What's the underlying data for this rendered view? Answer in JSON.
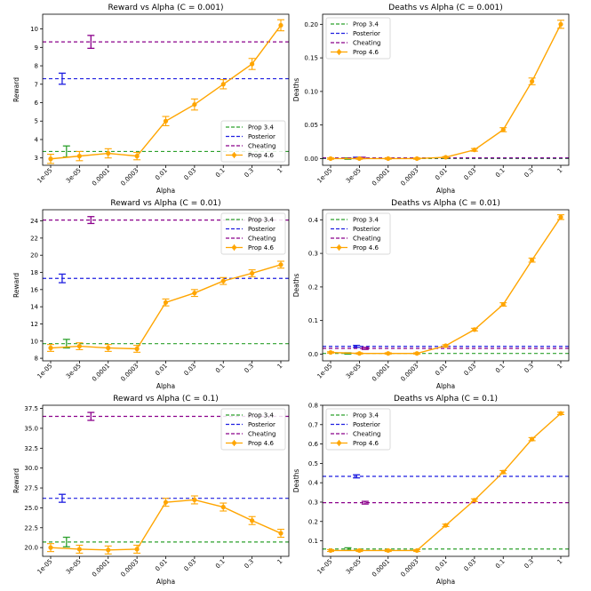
{
  "chart_data": [
    {
      "type": "line",
      "title": "Reward vs Alpha (C = 0.001)",
      "xlabel": "Alpha",
      "ylabel": "Reward",
      "categories": [
        "1e-05",
        "3e-05",
        "0.0001",
        "0.0003",
        "0.01",
        "0.03",
        "0.1",
        "0.3",
        "1"
      ],
      "ylim": [
        2.6,
        10.8
      ],
      "yticks": [
        3,
        4,
        5,
        6,
        7,
        8,
        9,
        10
      ],
      "ytick_decimals": 0,
      "legend_position": "lower-right",
      "series": [
        {
          "name": "Prop 4.6",
          "values": [
            2.95,
            3.1,
            3.25,
            3.1,
            5.0,
            5.9,
            7.0,
            8.1,
            10.2
          ],
          "errors": [
            0.25,
            0.25,
            0.25,
            0.2,
            0.25,
            0.3,
            0.25,
            0.3,
            0.3
          ]
        }
      ],
      "baselines": [
        {
          "name": "Prop 3.4",
          "value": 3.35,
          "err_x": 0.55,
          "err": 0.3
        },
        {
          "name": "Posterior",
          "value": 7.3,
          "err_x": 0.4,
          "err": 0.3
        },
        {
          "name": "Cheating",
          "value": 9.3,
          "err_x": 1.4,
          "err": 0.35
        }
      ]
    },
    {
      "type": "line",
      "title": "Deaths vs Alpha (C = 0.001)",
      "xlabel": "Alpha",
      "ylabel": "Deaths",
      "categories": [
        "1e-05",
        "3e-05",
        "0.0001",
        "0.0003",
        "0.01",
        "0.03",
        "0.1",
        "0.3",
        "1"
      ],
      "ylim": [
        -0.01,
        0.215
      ],
      "yticks": [
        0.0,
        0.05,
        0.1,
        0.15,
        0.2
      ],
      "ytick_decimals": 2,
      "legend_position": "top-left",
      "series": [
        {
          "name": "Prop 4.6",
          "values": [
            0.0,
            0.0,
            0.0,
            0.0,
            0.002,
            0.013,
            0.043,
            0.115,
            0.2
          ],
          "errors": [
            0.001,
            0.001,
            0.001,
            0.001,
            0.001,
            0.002,
            0.003,
            0.005,
            0.006
          ]
        }
      ],
      "baselines": [
        {
          "name": "Prop 3.4",
          "value": 0.0,
          "err_x": 0.6,
          "err": 0.001
        },
        {
          "name": "Posterior",
          "value": 0.001,
          "err_x": 0.9,
          "err": 0.001
        },
        {
          "name": "Cheating",
          "value": 0.001,
          "err_x": 1.1,
          "err": 0.001
        }
      ]
    },
    {
      "type": "line",
      "title": "Reward vs Alpha (C = 0.01)",
      "xlabel": "Alpha",
      "ylabel": "Reward",
      "categories": [
        "1e-05",
        "3e-05",
        "0.0001",
        "0.0003",
        "0.01",
        "0.03",
        "0.1",
        "0.3",
        "1"
      ],
      "ylim": [
        7.7,
        25.3
      ],
      "yticks": [
        8,
        10,
        12,
        14,
        16,
        18,
        20,
        22,
        24
      ],
      "ytick_decimals": 0,
      "legend_position": "top-right",
      "series": [
        {
          "name": "Prop 4.6",
          "values": [
            9.2,
            9.4,
            9.2,
            9.1,
            14.5,
            15.6,
            17.0,
            17.9,
            18.9
          ],
          "errors": [
            0.4,
            0.4,
            0.4,
            0.4,
            0.4,
            0.4,
            0.4,
            0.4,
            0.4
          ]
        }
      ],
      "baselines": [
        {
          "name": "Prop 3.4",
          "value": 9.7,
          "err_x": 0.55,
          "err": 0.5
        },
        {
          "name": "Posterior",
          "value": 17.3,
          "err_x": 0.4,
          "err": 0.5
        },
        {
          "name": "Cheating",
          "value": 24.1,
          "err_x": 1.4,
          "err": 0.4
        }
      ]
    },
    {
      "type": "line",
      "title": "Deaths vs Alpha (C = 0.01)",
      "xlabel": "Alpha",
      "ylabel": "Deaths",
      "categories": [
        "1e-05",
        "3e-05",
        "0.0001",
        "0.0003",
        "0.01",
        "0.03",
        "0.1",
        "0.3",
        "1"
      ],
      "ylim": [
        -0.02,
        0.43
      ],
      "yticks": [
        0.0,
        0.1,
        0.2,
        0.3,
        0.4
      ],
      "ytick_decimals": 1,
      "legend_position": "top-left",
      "series": [
        {
          "name": "Prop 4.6",
          "values": [
            0.005,
            0.002,
            0.002,
            0.002,
            0.025,
            0.073,
            0.148,
            0.28,
            0.408
          ],
          "errors": [
            0.002,
            0.002,
            0.002,
            0.002,
            0.003,
            0.004,
            0.005,
            0.006,
            0.007
          ]
        }
      ],
      "baselines": [
        {
          "name": "Prop 3.4",
          "value": 0.002,
          "err_x": 0.6,
          "err": 0.002
        },
        {
          "name": "Posterior",
          "value": 0.023,
          "err_x": 0.9,
          "err": 0.003
        },
        {
          "name": "Cheating",
          "value": 0.017,
          "err_x": 1.2,
          "err": 0.003
        }
      ]
    },
    {
      "type": "line",
      "title": "Reward vs Alpha (C = 0.1)",
      "xlabel": "Alpha",
      "ylabel": "Reward",
      "categories": [
        "1e-05",
        "3e-05",
        "0.0001",
        "0.0003",
        "0.01",
        "0.03",
        "0.1",
        "0.3",
        "1"
      ],
      "ylim": [
        18.9,
        37.9
      ],
      "yticks": [
        20.0,
        22.5,
        25.0,
        27.5,
        30.0,
        32.5,
        35.0,
        37.5
      ],
      "ytick_decimals": 1,
      "legend_position": "top-right",
      "series": [
        {
          "name": "Prop 4.6",
          "values": [
            20.0,
            19.8,
            19.7,
            19.8,
            25.7,
            26.0,
            25.1,
            23.4,
            21.8
          ],
          "errors": [
            0.5,
            0.5,
            0.5,
            0.5,
            0.5,
            0.5,
            0.5,
            0.5,
            0.5
          ]
        }
      ],
      "baselines": [
        {
          "name": "Prop 3.4",
          "value": 20.7,
          "err_x": 0.55,
          "err": 0.6
        },
        {
          "name": "Posterior",
          "value": 26.2,
          "err_x": 0.4,
          "err": 0.5
        },
        {
          "name": "Cheating",
          "value": 36.5,
          "err_x": 1.4,
          "err": 0.5
        }
      ]
    },
    {
      "type": "line",
      "title": "Deaths vs Alpha (C = 0.1)",
      "xlabel": "Alpha",
      "ylabel": "Deaths",
      "categories": [
        "1e-05",
        "3e-05",
        "0.0001",
        "0.0003",
        "0.01",
        "0.03",
        "0.1",
        "0.3",
        "1"
      ],
      "ylim": [
        0.02,
        0.8
      ],
      "yticks": [
        0.1,
        0.2,
        0.3,
        0.4,
        0.5,
        0.6,
        0.7,
        0.8
      ],
      "ytick_decimals": 1,
      "legend_position": "top-left",
      "series": [
        {
          "name": "Prop 4.6",
          "values": [
            0.05,
            0.05,
            0.05,
            0.05,
            0.18,
            0.31,
            0.455,
            0.625,
            0.758
          ],
          "errors": [
            0.005,
            0.005,
            0.005,
            0.005,
            0.006,
            0.007,
            0.008,
            0.008,
            0.006
          ]
        }
      ],
      "baselines": [
        {
          "name": "Prop 3.4",
          "value": 0.058,
          "err_x": 0.6,
          "err": 0.006
        },
        {
          "name": "Posterior",
          "value": 0.433,
          "err_x": 0.9,
          "err": 0.008
        },
        {
          "name": "Cheating",
          "value": 0.297,
          "err_x": 1.2,
          "err": 0.007
        }
      ]
    }
  ],
  "colors": {
    "Prop 3.4": "#2ca02c",
    "Posterior": "#1f1fe0",
    "Cheating": "#8b008b",
    "Prop 4.6": "#ffa500"
  }
}
